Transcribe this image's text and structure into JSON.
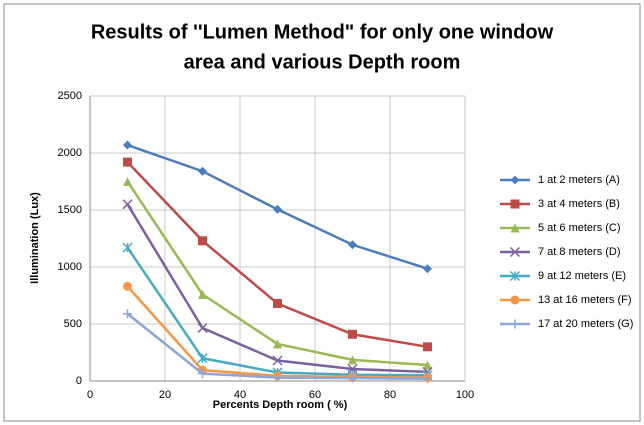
{
  "chart_data": {
    "type": "line",
    "title": [
      "Results of ''Lumen Method\" for only one window",
      "area and various Depth room"
    ],
    "x_label": "Percents Depth room ( %)",
    "y_label": "Illumination (Lux)",
    "x": [
      10,
      30,
      50,
      70,
      90
    ],
    "series": [
      {
        "name": "1 at 2 meters (A)",
        "color": "#4a7ebb",
        "marker": "diamond",
        "values": [
          2070,
          1840,
          1505,
          1195,
          985
        ]
      },
      {
        "name": "3 at 4 meters (B)",
        "color": "#be4b48",
        "marker": "square",
        "values": [
          1920,
          1230,
          680,
          410,
          300
        ]
      },
      {
        "name": "5 at 6 meters (C)",
        "color": "#98b954",
        "marker": "triangle",
        "values": [
          1750,
          760,
          325,
          185,
          140
        ]
      },
      {
        "name": "7 at 8 meters (D)",
        "color": "#7d60a0",
        "marker": "x",
        "values": [
          1550,
          465,
          180,
          105,
          80
        ]
      },
      {
        "name": "9 at 12 meters (E)",
        "color": "#46aac5",
        "marker": "star",
        "values": [
          1170,
          200,
          75,
          55,
          50
        ]
      },
      {
        "name": "13 at 16 meters (F)",
        "color": "#f79646",
        "marker": "circle",
        "values": [
          830,
          95,
          45,
          35,
          30
        ]
      },
      {
        "name": "17 at 20 meters (G)",
        "color": "#8ca6d7",
        "marker": "plus",
        "values": [
          590,
          65,
          30,
          25,
          20
        ]
      }
    ],
    "xlim": [
      0,
      100
    ],
    "xticks": [
      0,
      20,
      40,
      60,
      80,
      100
    ],
    "ylim": [
      0,
      2500
    ],
    "yticks": [
      0,
      500,
      1000,
      1500,
      2000,
      2500
    ],
    "grid": true,
    "legend": "right"
  }
}
